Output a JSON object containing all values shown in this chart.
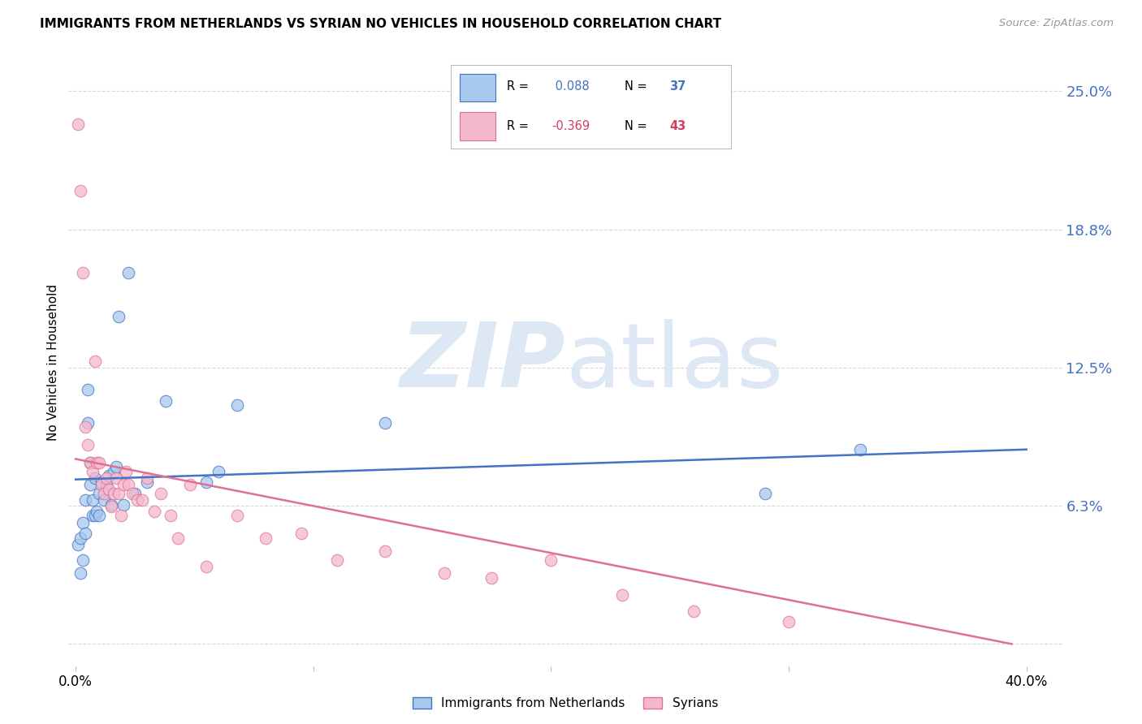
{
  "title": "IMMIGRANTS FROM NETHERLANDS VS SYRIAN NO VEHICLES IN HOUSEHOLD CORRELATION CHART",
  "source": "Source: ZipAtlas.com",
  "ylabel": "No Vehicles in Household",
  "ytick_vals": [
    0.0,
    0.0625,
    0.125,
    0.1875,
    0.25
  ],
  "ytick_labels": [
    "",
    "6.3%",
    "12.5%",
    "18.8%",
    "25.0%"
  ],
  "xtick_vals": [
    0.0,
    0.1,
    0.2,
    0.3,
    0.4
  ],
  "xtick_labels": [
    "0.0%",
    "",
    "",
    "",
    "40.0%"
  ],
  "xlim": [
    -0.003,
    0.415
  ],
  "ylim": [
    -0.01,
    0.265
  ],
  "legend1_label": "Immigrants from Netherlands",
  "legend2_label": "Syrians",
  "R1": "0.088",
  "N1": "37",
  "R2": "-0.369",
  "N2": "43",
  "color_blue": "#a8c8ee",
  "color_pink": "#f4b8cc",
  "color_line_blue": "#4472c4",
  "color_line_pink": "#e07090",
  "color_text_blue": "#4472c4",
  "color_text_pink": "#d04060",
  "watermark_text1": "ZIP",
  "watermark_text2": "atlas",
  "watermark_color": "#dde8f4",
  "blue_x": [
    0.001,
    0.002,
    0.002,
    0.003,
    0.003,
    0.004,
    0.004,
    0.005,
    0.005,
    0.006,
    0.006,
    0.007,
    0.007,
    0.008,
    0.008,
    0.009,
    0.01,
    0.01,
    0.011,
    0.012,
    0.013,
    0.014,
    0.015,
    0.016,
    0.017,
    0.018,
    0.02,
    0.022,
    0.025,
    0.03,
    0.038,
    0.055,
    0.06,
    0.068,
    0.13,
    0.29,
    0.33
  ],
  "blue_y": [
    0.045,
    0.032,
    0.048,
    0.055,
    0.038,
    0.05,
    0.065,
    0.115,
    0.1,
    0.072,
    0.082,
    0.065,
    0.058,
    0.058,
    0.075,
    0.06,
    0.058,
    0.068,
    0.073,
    0.065,
    0.072,
    0.076,
    0.063,
    0.078,
    0.08,
    0.148,
    0.063,
    0.168,
    0.068,
    0.073,
    0.11,
    0.073,
    0.078,
    0.108,
    0.1,
    0.068,
    0.088
  ],
  "pink_x": [
    0.001,
    0.002,
    0.003,
    0.004,
    0.005,
    0.006,
    0.007,
    0.008,
    0.009,
    0.01,
    0.011,
    0.012,
    0.013,
    0.014,
    0.015,
    0.016,
    0.017,
    0.018,
    0.019,
    0.02,
    0.021,
    0.022,
    0.024,
    0.026,
    0.028,
    0.03,
    0.033,
    0.036,
    0.04,
    0.043,
    0.048,
    0.055,
    0.068,
    0.08,
    0.095,
    0.11,
    0.13,
    0.155,
    0.175,
    0.2,
    0.23,
    0.26,
    0.3
  ],
  "pink_y": [
    0.235,
    0.205,
    0.168,
    0.098,
    0.09,
    0.082,
    0.078,
    0.128,
    0.082,
    0.082,
    0.072,
    0.068,
    0.075,
    0.07,
    0.062,
    0.068,
    0.075,
    0.068,
    0.058,
    0.072,
    0.078,
    0.072,
    0.068,
    0.065,
    0.065,
    0.075,
    0.06,
    0.068,
    0.058,
    0.048,
    0.072,
    0.035,
    0.058,
    0.048,
    0.05,
    0.038,
    0.042,
    0.032,
    0.03,
    0.038,
    0.022,
    0.015,
    0.01
  ],
  "background_color": "#ffffff",
  "grid_color": "#d8d8d8"
}
